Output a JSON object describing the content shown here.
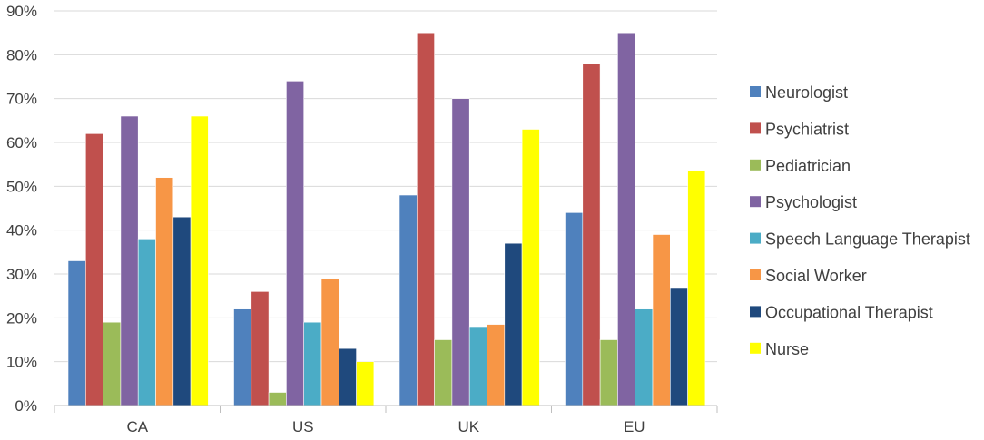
{
  "chart_data": {
    "type": "bar",
    "categories": [
      "CA",
      "US",
      "UK",
      "EU"
    ],
    "ylim": [
      0,
      90
    ],
    "yticks": [
      "0%",
      "10%",
      "20%",
      "30%",
      "40%",
      "50%",
      "60%",
      "70%",
      "80%",
      "90%"
    ],
    "grid": true,
    "legend_position": "right",
    "series": [
      {
        "name": "Neurologist",
        "color": "#4F81BD",
        "values": [
          33,
          22,
          48,
          44
        ]
      },
      {
        "name": "Psychiatrist",
        "color": "#C0504D",
        "values": [
          62,
          26,
          85,
          78
        ]
      },
      {
        "name": "Pediatrician",
        "color": "#9BBB59",
        "values": [
          19,
          3,
          15,
          15
        ]
      },
      {
        "name": "Psychologist",
        "color": "#8064A2",
        "values": [
          66,
          74,
          70,
          85
        ]
      },
      {
        "name": "Speech Language Therapist",
        "color": "#4BACC6",
        "values": [
          38,
          19,
          18,
          22
        ]
      },
      {
        "name": "Social Worker",
        "color": "#F79646",
        "values": [
          52,
          29,
          18.5,
          39
        ]
      },
      {
        "name": "Occupational Therapist",
        "color": "#1F497D",
        "values": [
          43,
          13,
          37,
          26.7
        ]
      },
      {
        "name": "Nurse",
        "color": "#FFFF00",
        "values": [
          66,
          10,
          63,
          53.6
        ]
      }
    ]
  }
}
